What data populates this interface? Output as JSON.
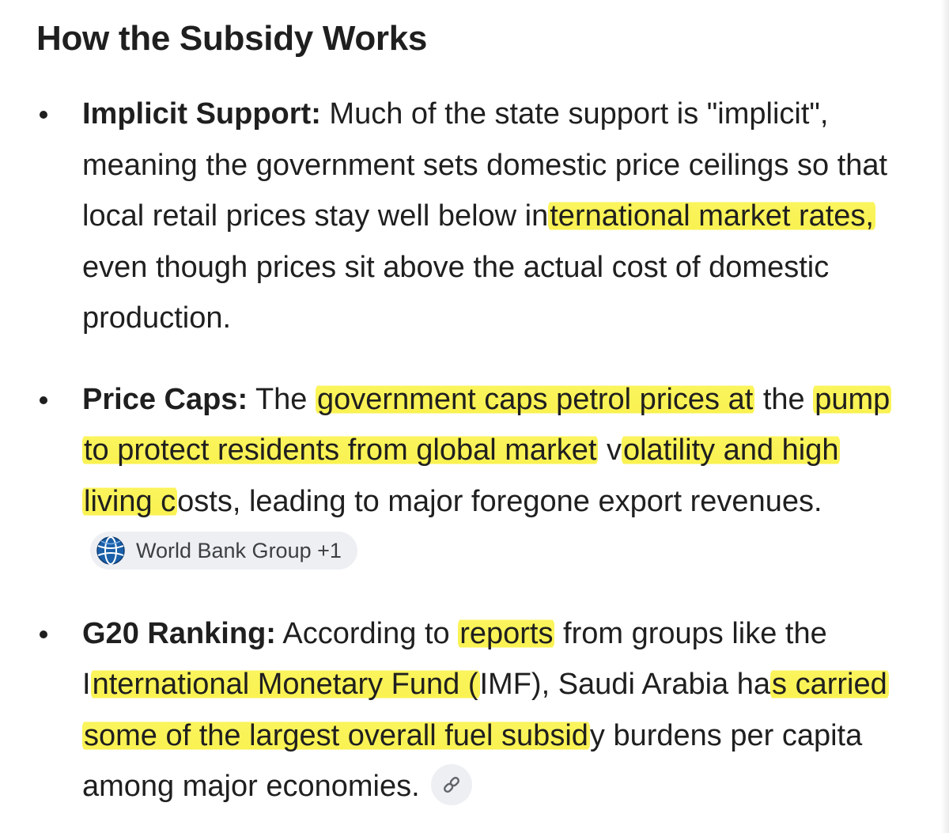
{
  "heading": "How the Subsidy Works",
  "bullets": [
    {
      "term": "Implicit Support:",
      "text_before": " Much of the state support is \"implicit\", meaning the government sets domestic price ceilings so that local retail prices stay well below in",
      "highlight": "ternational market rates,",
      "text_after": " even though prices sit above the actual cost of domestic production."
    },
    {
      "term": "Price Caps:",
      "text_before": " The ",
      "highlight_1": "government caps petrol prices at",
      "text_mid_1": " the ",
      "highlight_2": "pump to protect residents from global market",
      "text_mid_2": " v",
      "highlight_3": "olatility and high living c",
      "text_after": "osts, leading to major foregone export revenues.",
      "source_chip": {
        "label": "World Bank Group +1",
        "icon": "world-bank-globe-icon"
      }
    },
    {
      "term": "G20 Ranking:",
      "text_before": " According to ",
      "highlight_1": "reports",
      "text_mid_1": " from groups like the I",
      "highlight_2": "nternational Monetary Fund (",
      "text_mid_2": "IMF), Saudi Arabia ha",
      "highlight_3": "s carried some of the largest overall fuel subsid",
      "text_after": "y burdens per capita among major economies.",
      "link_chip": {
        "icon": "link-icon"
      }
    }
  ],
  "colors": {
    "highlight": "#f9f251",
    "text": "#1f1f1f",
    "chip_background": "#eeeff3",
    "chip_text": "#3c4043"
  }
}
